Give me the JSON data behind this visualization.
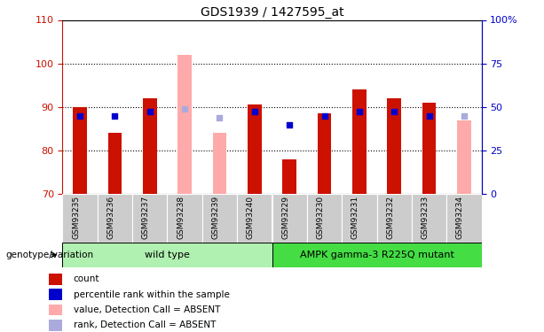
{
  "title": "GDS1939 / 1427595_at",
  "samples": [
    "GSM93235",
    "GSM93236",
    "GSM93237",
    "GSM93238",
    "GSM93239",
    "GSM93240",
    "GSM93229",
    "GSM93230",
    "GSM93231",
    "GSM93232",
    "GSM93233",
    "GSM93234"
  ],
  "absent": [
    false,
    false,
    false,
    true,
    true,
    false,
    false,
    false,
    false,
    false,
    false,
    true
  ],
  "count_values": [
    90.0,
    84.0,
    92.0,
    null,
    null,
    90.5,
    78.0,
    88.5,
    94.0,
    92.0,
    91.0,
    null
  ],
  "absent_count_values": [
    null,
    null,
    null,
    102.0,
    84.0,
    null,
    null,
    null,
    null,
    null,
    null,
    87.0
  ],
  "rank_values": [
    88.0,
    88.0,
    89.0,
    null,
    null,
    89.0,
    86.0,
    88.0,
    89.0,
    89.0,
    88.0,
    null
  ],
  "absent_rank_values": [
    null,
    null,
    null,
    89.5,
    87.5,
    null,
    null,
    null,
    null,
    null,
    null,
    88.0
  ],
  "ylim_left": [
    70,
    110
  ],
  "ylim_right": [
    0,
    100
  ],
  "yticks_left": [
    70,
    80,
    90,
    100,
    110
  ],
  "yticks_right": [
    0,
    25,
    50,
    75,
    100
  ],
  "ytick_labels_right": [
    "0",
    "25",
    "50",
    "75",
    "100%"
  ],
  "groups": [
    {
      "label": "wild type",
      "indices": [
        0,
        1,
        2,
        3,
        4,
        5
      ],
      "color": "#b0f0b0"
    },
    {
      "label": "AMPK gamma-3 R225Q mutant",
      "indices": [
        6,
        7,
        8,
        9,
        10,
        11
      ],
      "color": "#44dd44"
    }
  ],
  "bar_color_present": "#cc1100",
  "bar_color_absent": "#ffaaaa",
  "dot_color_present": "#0000cc",
  "dot_color_absent": "#aaaadd",
  "bar_width": 0.4,
  "dot_size": 25,
  "axis_color_left": "#cc1100",
  "axis_color_right": "#0000cc",
  "xtick_bg": "#cccccc",
  "legend_items": [
    {
      "label": "count",
      "color": "#cc1100"
    },
    {
      "label": "percentile rank within the sample",
      "color": "#0000cc"
    },
    {
      "label": "value, Detection Call = ABSENT",
      "color": "#ffaaaa"
    },
    {
      "label": "rank, Detection Call = ABSENT",
      "color": "#aaaadd"
    }
  ],
  "genotype_label": "genotype/variation"
}
